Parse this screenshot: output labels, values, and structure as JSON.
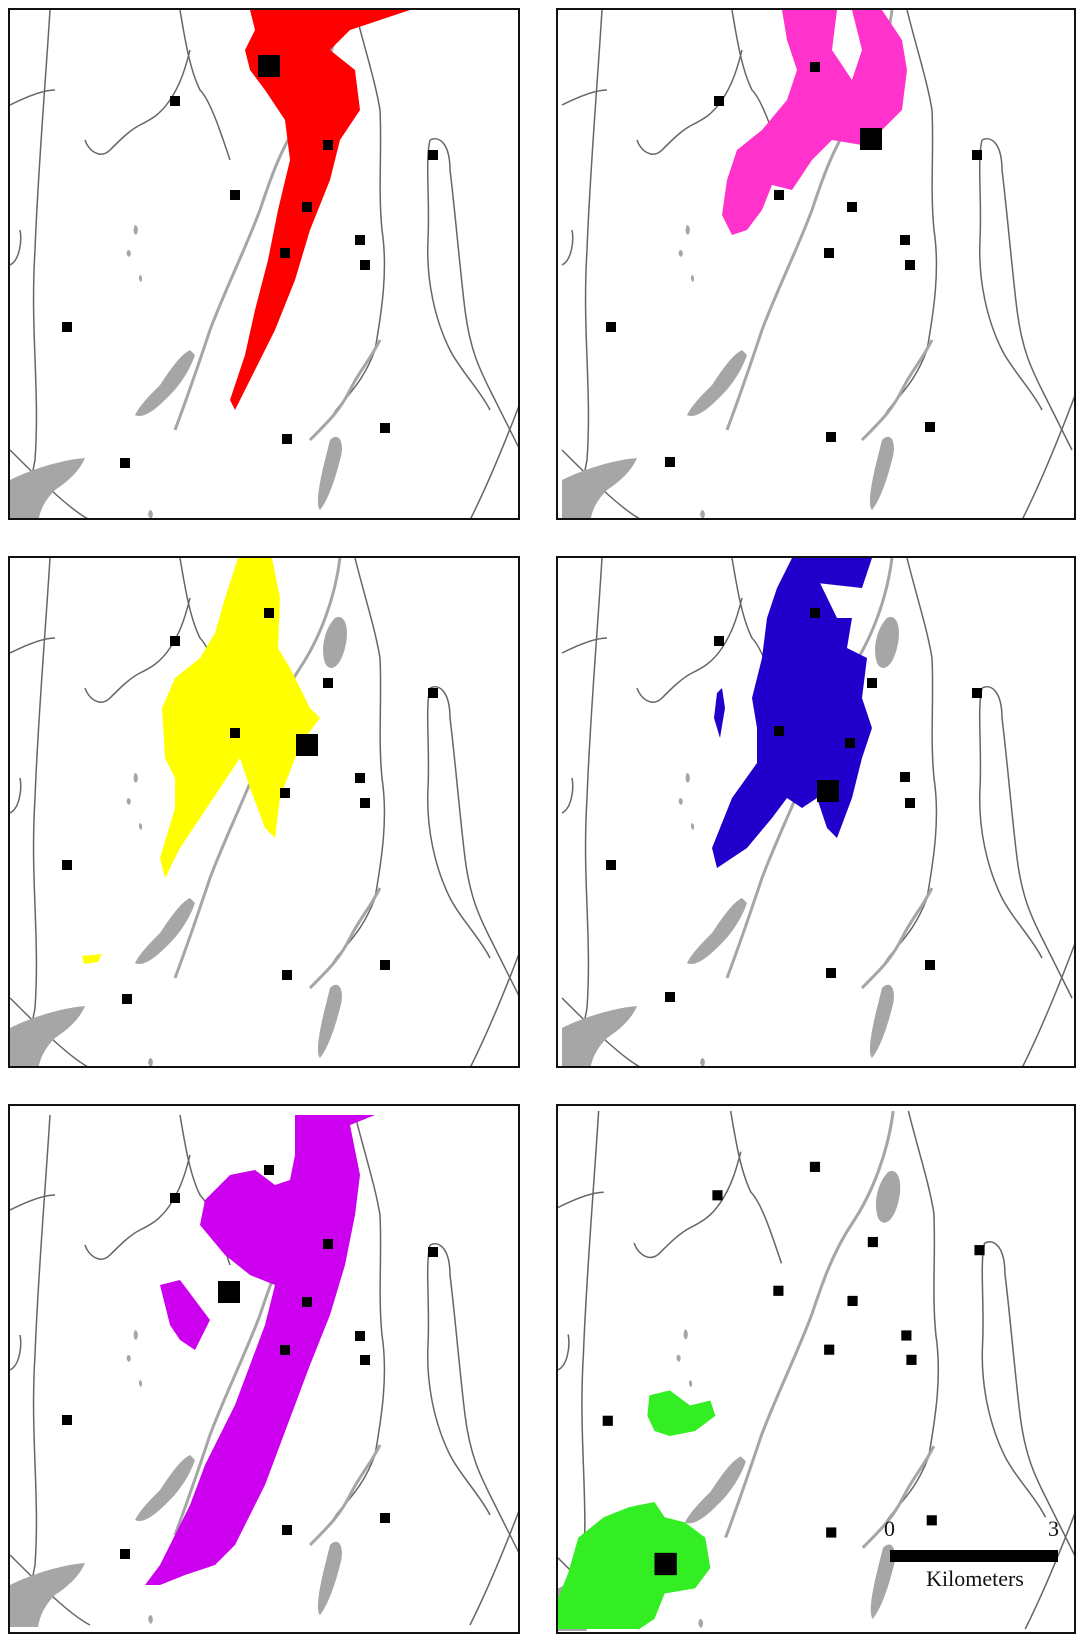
{
  "figure": {
    "panels": [
      {
        "id": "top-left",
        "fill_color": "#ff0000"
      },
      {
        "id": "top-right",
        "fill_color": "#ff33cc"
      },
      {
        "id": "middle-left",
        "fill_color": "#ffff00"
      },
      {
        "id": "middle-right",
        "fill_color": "#2200cc"
      },
      {
        "id": "bottom-left",
        "fill_color": "#cc00ee"
      },
      {
        "id": "bottom-right",
        "fill_color": "#33ee22"
      }
    ],
    "colors": {
      "water": "#a6a6a6",
      "outline": "#666666",
      "marker": "#000000"
    }
  },
  "scale_bar": {
    "start_label": "0",
    "end_label": "3",
    "unit_label": "Kilometers"
  }
}
